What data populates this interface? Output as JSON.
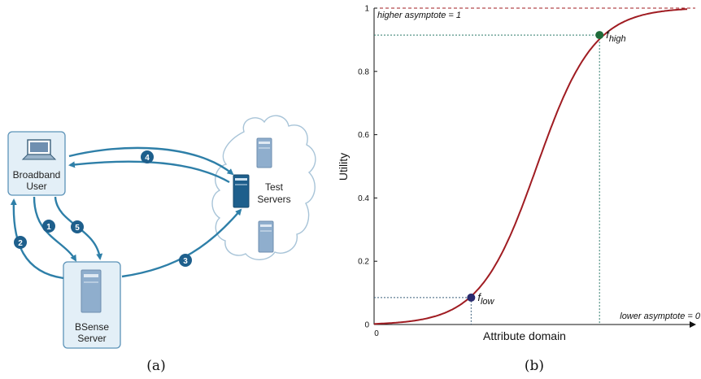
{
  "diagram": {
    "user_label": [
      "Broadband",
      "User"
    ],
    "server_label": [
      "BSense",
      "Server"
    ],
    "test_servers_label": [
      "Test",
      "Servers"
    ],
    "steps": [
      "1",
      "2",
      "3",
      "4",
      "5"
    ],
    "caption": "(a)"
  },
  "chart_data": {
    "type": "line",
    "caption": "(b)",
    "xlabel": "Attribute domain",
    "ylabel": "Utility",
    "ylim": [
      0,
      1
    ],
    "y_ticks": [
      "0",
      "0.2",
      "0.4",
      "0.6",
      "0.8",
      "1"
    ],
    "x_tick_label": "0",
    "higher_asymptote_label": "higher asymptote = 1",
    "lower_asymptote_label": "lower asymptote = 0",
    "f_low": {
      "name": "f",
      "sub": "low",
      "x": 0.31,
      "y": 0.085
    },
    "f_high": {
      "name": "f",
      "sub": "high",
      "x": 0.72,
      "y": 0.915
    },
    "curve_color": "#a01c22",
    "point_low_color": "#2a2a6e",
    "point_high_color": "#1f6b3a"
  }
}
